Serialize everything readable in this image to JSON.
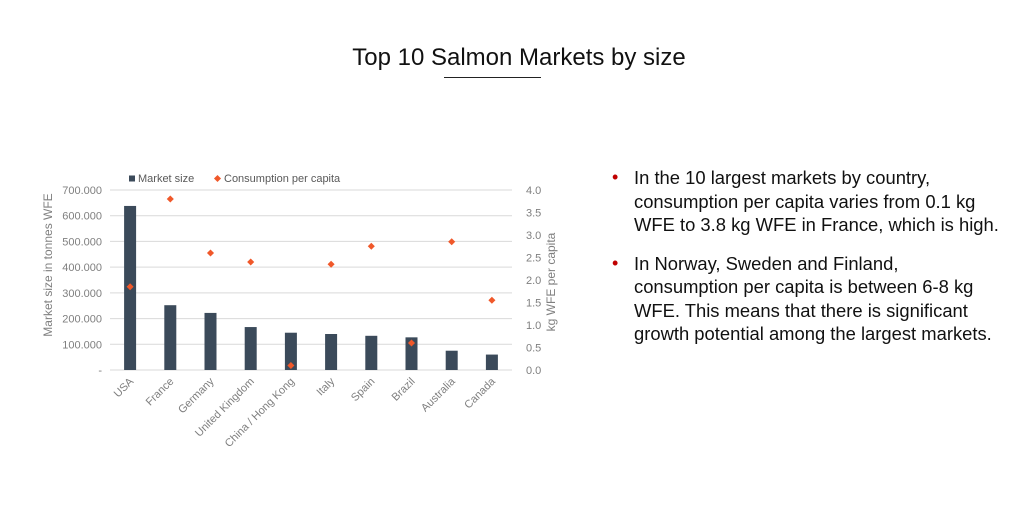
{
  "slide": {
    "title": "Top 10 Salmon Markets by size"
  },
  "bullets": [
    {
      "text": "In the 10 largest markets by country, consumption per capita varies from 0.1 kg WFE to 3.8 kg WFE in France, which is high."
    },
    {
      "text": "In Norway, Sweden and Finland, consumption per capita is between 6-8 kg WFE. This means that there is significant growth potential among the largest markets."
    }
  ],
  "colors": {
    "bar": "#3b4a5a",
    "marker": "#f0582a",
    "bullet": "#c00000",
    "grid": "#d9d9d9",
    "axis_text": "#7f7f7f"
  },
  "chart_data": {
    "type": "bar",
    "title": "",
    "categories": [
      "USA",
      "France",
      "Germany",
      "United Kingdom",
      "China / Hong Kong",
      "Italy",
      "Spain",
      "Brazil",
      "Australia",
      "Canada"
    ],
    "series": [
      {
        "name": "Market size",
        "type": "bar",
        "axis": "left",
        "values": [
          638000,
          252000,
          222000,
          167000,
          145000,
          140000,
          133000,
          127000,
          75000,
          60000
        ]
      },
      {
        "name": "Consumption per capita",
        "type": "scatter",
        "axis": "right",
        "values": [
          1.85,
          3.8,
          2.6,
          2.4,
          0.1,
          2.35,
          2.75,
          0.6,
          2.85,
          1.55
        ]
      }
    ],
    "ylabel": "Market size in tonnes WFE",
    "y2label": "kg WFE per capita",
    "ylim": [
      0,
      700000
    ],
    "y2lim": [
      0,
      4.0
    ],
    "yticks": [
      "-",
      "100.000",
      "200.000",
      "300.000",
      "400.000",
      "500.000",
      "600.000",
      "700.000"
    ],
    "y2ticks": [
      "0.0",
      "0.5",
      "1.0",
      "1.5",
      "2.0",
      "2.5",
      "3.0",
      "3.5",
      "4.0"
    ],
    "grid": true,
    "legend_position": "top"
  }
}
